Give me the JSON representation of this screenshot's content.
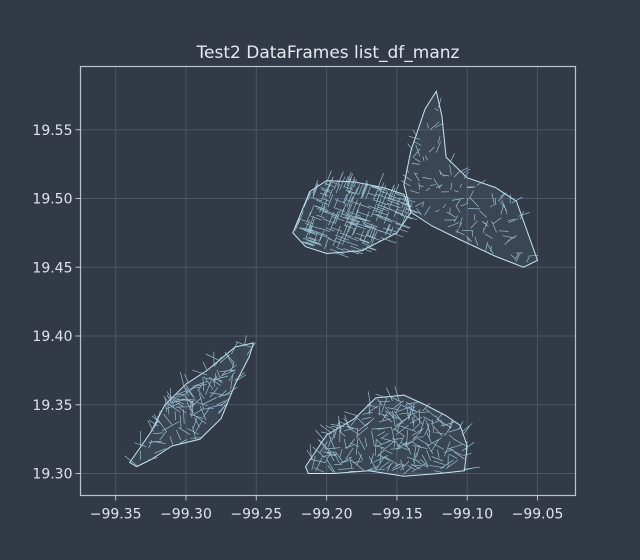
{
  "chart_data": {
    "type": "map",
    "title": "Test2 DataFrames list_df_manz",
    "xlabel": "",
    "ylabel": "",
    "xlim": [
      -99.375,
      -99.023
    ],
    "ylim": [
      19.284,
      19.596
    ],
    "x_ticks": [
      -99.35,
      -99.3,
      -99.25,
      -99.2,
      -99.15,
      -99.1,
      -99.05
    ],
    "x_tick_labels": [
      "−99.35",
      "−99.30",
      "−99.25",
      "−99.20",
      "−99.15",
      "−99.10",
      "−99.05"
    ],
    "y_ticks": [
      19.3,
      19.35,
      19.4,
      19.45,
      19.5,
      19.55
    ],
    "y_tick_labels": [
      "19.30",
      "19.35",
      "19.40",
      "19.45",
      "19.50",
      "19.55"
    ],
    "grid": true,
    "legend": "none",
    "colors": {
      "background": "#323a48",
      "lines": "#a9d4e6",
      "grid": "#4b5566",
      "frame": "#b9c3d2",
      "text": "#e6e9ef"
    },
    "regions": [
      {
        "polygon": [
          [
            -99.224,
            19.475
          ],
          [
            -99.212,
            19.505
          ],
          [
            -99.2,
            19.513
          ],
          [
            -99.18,
            19.512
          ],
          [
            -99.16,
            19.508
          ],
          [
            -99.145,
            19.503
          ],
          [
            -99.14,
            19.49
          ],
          [
            -99.15,
            19.475
          ],
          [
            -99.175,
            19.462
          ],
          [
            -99.2,
            19.46
          ],
          [
            -99.215,
            19.465
          ]
        ]
      },
      {
        "polygon": [
          [
            -99.145,
            19.51
          ],
          [
            -99.14,
            19.535
          ],
          [
            -99.13,
            19.565
          ],
          [
            -99.122,
            19.578
          ],
          [
            -99.118,
            19.56
          ],
          [
            -99.115,
            19.53
          ],
          [
            -99.1,
            19.515
          ],
          [
            -99.08,
            19.508
          ],
          [
            -99.065,
            19.498
          ],
          [
            -99.058,
            19.478
          ],
          [
            -99.05,
            19.455
          ],
          [
            -99.06,
            19.45
          ],
          [
            -99.08,
            19.458
          ],
          [
            -99.105,
            19.47
          ],
          [
            -99.125,
            19.48
          ],
          [
            -99.14,
            19.49
          ]
        ]
      },
      {
        "polygon": [
          [
            -99.34,
            19.308
          ],
          [
            -99.325,
            19.33
          ],
          [
            -99.315,
            19.35
          ],
          [
            -99.3,
            19.365
          ],
          [
            -99.285,
            19.375
          ],
          [
            -99.265,
            19.392
          ],
          [
            -99.252,
            19.395
          ],
          [
            -99.255,
            19.385
          ],
          [
            -99.265,
            19.365
          ],
          [
            -99.275,
            19.34
          ],
          [
            -99.29,
            19.325
          ],
          [
            -99.31,
            19.32
          ],
          [
            -99.325,
            19.31
          ],
          [
            -99.335,
            19.305
          ]
        ]
      },
      {
        "polygon": [
          [
            -99.215,
            19.305
          ],
          [
            -99.2,
            19.328
          ],
          [
            -99.18,
            19.34
          ],
          [
            -99.165,
            19.355
          ],
          [
            -99.145,
            19.357
          ],
          [
            -99.13,
            19.35
          ],
          [
            -99.115,
            19.342
          ],
          [
            -99.105,
            19.335
          ],
          [
            -99.1,
            19.32
          ],
          [
            -99.102,
            19.302
          ],
          [
            -99.12,
            19.3
          ],
          [
            -99.145,
            19.298
          ],
          [
            -99.17,
            19.302
          ],
          [
            -99.195,
            19.3
          ],
          [
            -99.213,
            19.3
          ]
        ]
      }
    ]
  }
}
